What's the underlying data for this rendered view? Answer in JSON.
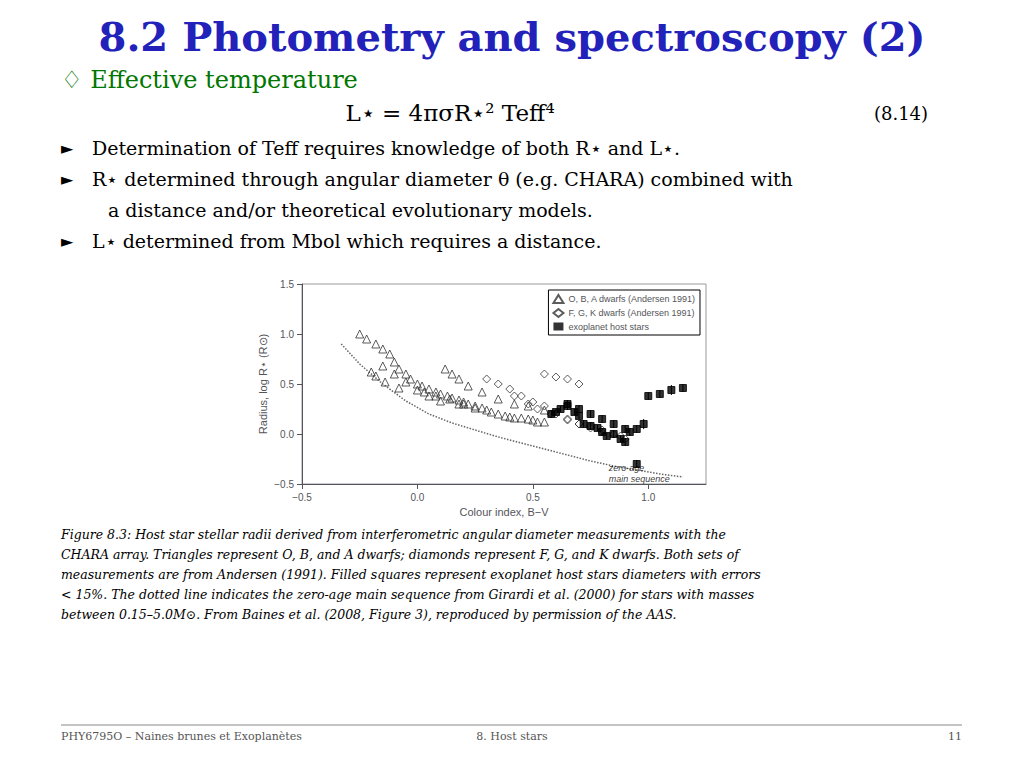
{
  "chart_data": {
    "type": "scatter",
    "title": "8.2 Photometry and spectroscopy (2)",
    "title_color": "#2222BB",
    "subtitle": "♢ Effective temperature",
    "subtitle_color": "#007700",
    "equation": "L⋆ = 4πσR⋆² Teff⁴",
    "equation_number": "(8.14)",
    "bullet_symbol": "►",
    "bullets": [
      [
        "Determination of Teff requires knowledge of both R⋆ and L⋆."
      ],
      [
        "R⋆ determined through angular diameter θ (e.g. CHARA) combined with",
        "a distance and/or theoretical evolutionary models."
      ],
      [
        "L⋆ determined from Mbol which requires a distance."
      ]
    ],
    "caption": [
      "Figure 8.3: Host star stellar radii derived from interferometric angular diameter measurements with the",
      "CHARA array. Triangles represent O, B, and A dwarfs; diamonds represent F, G, and K dwarfs. Both sets of",
      "measurements are from Andersen (1991). Filled squares represent exoplanet host stars diameters with errors",
      "< 15%. The dotted line indicates the zero-age main sequence from Girardi et al. (2000) for stars with masses",
      "between 0.15–5.0M⊙. From Baines et al. (2008, Figure 3), reproduced by permission of the AAS."
    ],
    "footer": {
      "left": "PHY6795O – Naines brunes et Exoplanètes",
      "center": "8. Host stars",
      "right": "11"
    },
    "x_label": "Colour index, B−V",
    "y_label": "Radius, log R⋆ (R⊙)",
    "xlim": [
      -0.5,
      1.25
    ],
    "ylim": [
      -0.5,
      1.5
    ],
    "xticks": [
      {
        "value": -0.5,
        "label": "−0.5"
      },
      {
        "value": 0.0,
        "label": "0.0"
      },
      0.5,
      {
        "value": 1.0,
        "label": "1.0"
      }
    ],
    "yticks": [
      {
        "value": -0.5,
        "label": "−0.5"
      },
      {
        "value": 0.0,
        "label": "0.0"
      },
      0.5,
      {
        "value": 1.0,
        "label": "1.0"
      },
      1.5
    ],
    "grid": false,
    "legend": "upper right",
    "annotations": [
      {
        "text": "zero-age\nmain sequence",
        "x": 0.82,
        "y": -0.28
      }
    ],
    "series": [
      {
        "name": "O, B, A dwarfs (Andersen 1991)",
        "type": "scatter",
        "marker": "triangle-open",
        "color": "#333333",
        "x": [
          -0.25,
          -0.22,
          -0.18,
          -0.15,
          -0.12,
          -0.1,
          -0.08,
          -0.05,
          -0.03,
          0.0,
          0.02,
          0.05,
          0.08,
          0.1,
          0.13,
          0.15,
          0.18,
          0.2,
          0.22,
          0.25,
          0.28,
          0.3,
          0.32,
          0.35,
          0.38,
          0.4,
          0.42,
          0.45,
          0.48,
          0.5,
          0.52,
          0.55,
          0.12,
          0.15,
          0.18,
          0.22,
          0.28,
          0.35,
          0.42,
          0.48,
          0.55,
          -0.15,
          -0.1,
          -0.05,
          0.0,
          0.05,
          0.1,
          0.18,
          0.25,
          -0.2,
          -0.18,
          -0.14,
          -0.08,
          0.03,
          0.08,
          0.14,
          0.2
        ],
        "values": [
          1.0,
          0.95,
          0.9,
          0.85,
          0.8,
          0.72,
          0.65,
          0.6,
          0.55,
          0.5,
          0.48,
          0.45,
          0.42,
          0.4,
          0.38,
          0.36,
          0.34,
          0.32,
          0.3,
          0.28,
          0.26,
          0.24,
          0.22,
          0.2,
          0.18,
          0.17,
          0.16,
          0.16,
          0.15,
          0.14,
          0.12,
          0.12,
          0.65,
          0.6,
          0.55,
          0.48,
          0.42,
          0.35,
          0.3,
          0.28,
          0.24,
          0.68,
          0.6,
          0.52,
          0.44,
          0.38,
          0.33,
          0.3,
          0.26,
          0.62,
          0.58,
          0.52,
          0.46,
          0.42,
          0.38,
          0.35,
          0.3
        ]
      },
      {
        "name": "F, G, K dwarfs (Andersen 1991)",
        "type": "scatter",
        "marker": "diamond-open",
        "color": "#333333",
        "x": [
          0.3,
          0.35,
          0.4,
          0.45,
          0.5,
          0.55,
          0.6,
          0.65,
          0.7,
          0.75,
          0.8,
          0.85,
          0.9,
          0.42,
          0.48,
          0.52,
          0.58,
          0.65,
          0.7,
          0.75,
          0.8,
          0.88,
          0.55,
          0.6,
          0.65,
          0.7
        ],
        "values": [
          0.55,
          0.5,
          0.45,
          0.38,
          0.32,
          0.28,
          0.2,
          0.15,
          0.1,
          0.08,
          0.04,
          0.0,
          -0.05,
          0.38,
          0.3,
          0.25,
          0.2,
          0.14,
          0.1,
          0.06,
          0.02,
          -0.02,
          0.6,
          0.57,
          0.55,
          0.5
        ]
      },
      {
        "name": "exoplanet host stars",
        "type": "scatter",
        "marker": "square",
        "color": "#000000",
        "x": [
          0.58,
          0.6,
          0.62,
          0.65,
          0.68,
          0.7,
          0.72,
          0.75,
          0.78,
          0.8,
          0.82,
          0.85,
          0.88,
          0.9,
          0.92,
          0.95,
          0.98,
          1.0,
          1.05,
          1.1,
          1.15,
          0.65,
          0.7,
          0.75,
          0.8,
          0.85,
          0.9,
          0.95
        ],
        "values": [
          0.2,
          0.22,
          0.25,
          0.28,
          0.22,
          0.18,
          0.1,
          0.08,
          0.06,
          0.02,
          -0.02,
          0.0,
          -0.05,
          -0.08,
          0.02,
          0.05,
          0.1,
          0.38,
          0.4,
          0.44,
          0.46,
          0.3,
          0.25,
          0.2,
          0.15,
          0.1,
          0.05,
          -0.3
        ],
        "errors": [
          0.03,
          0.03,
          0.03,
          0.04,
          0.03,
          0.03,
          0.04,
          0.04,
          0.03,
          0.04,
          0.03,
          0.04,
          0.03,
          0.04,
          0.04,
          0.04,
          0.05,
          0.04,
          0.04,
          0.05,
          0.04,
          0.04,
          0.04,
          0.04,
          0.04,
          0.04,
          0.04,
          0.04
        ]
      },
      {
        "type": "line",
        "line_style": "dotted",
        "color": "#666666",
        "x": [
          -0.33,
          -0.25,
          -0.15,
          -0.05,
          0.05,
          0.15,
          0.25,
          0.35,
          0.45,
          0.55,
          0.65,
          0.75,
          0.85,
          0.95,
          1.05,
          1.15
        ],
        "values": [
          0.9,
          0.7,
          0.5,
          0.33,
          0.2,
          0.11,
          0.04,
          -0.03,
          -0.09,
          -0.15,
          -0.21,
          -0.27,
          -0.32,
          -0.36,
          -0.4,
          -0.43
        ]
      }
    ]
  }
}
